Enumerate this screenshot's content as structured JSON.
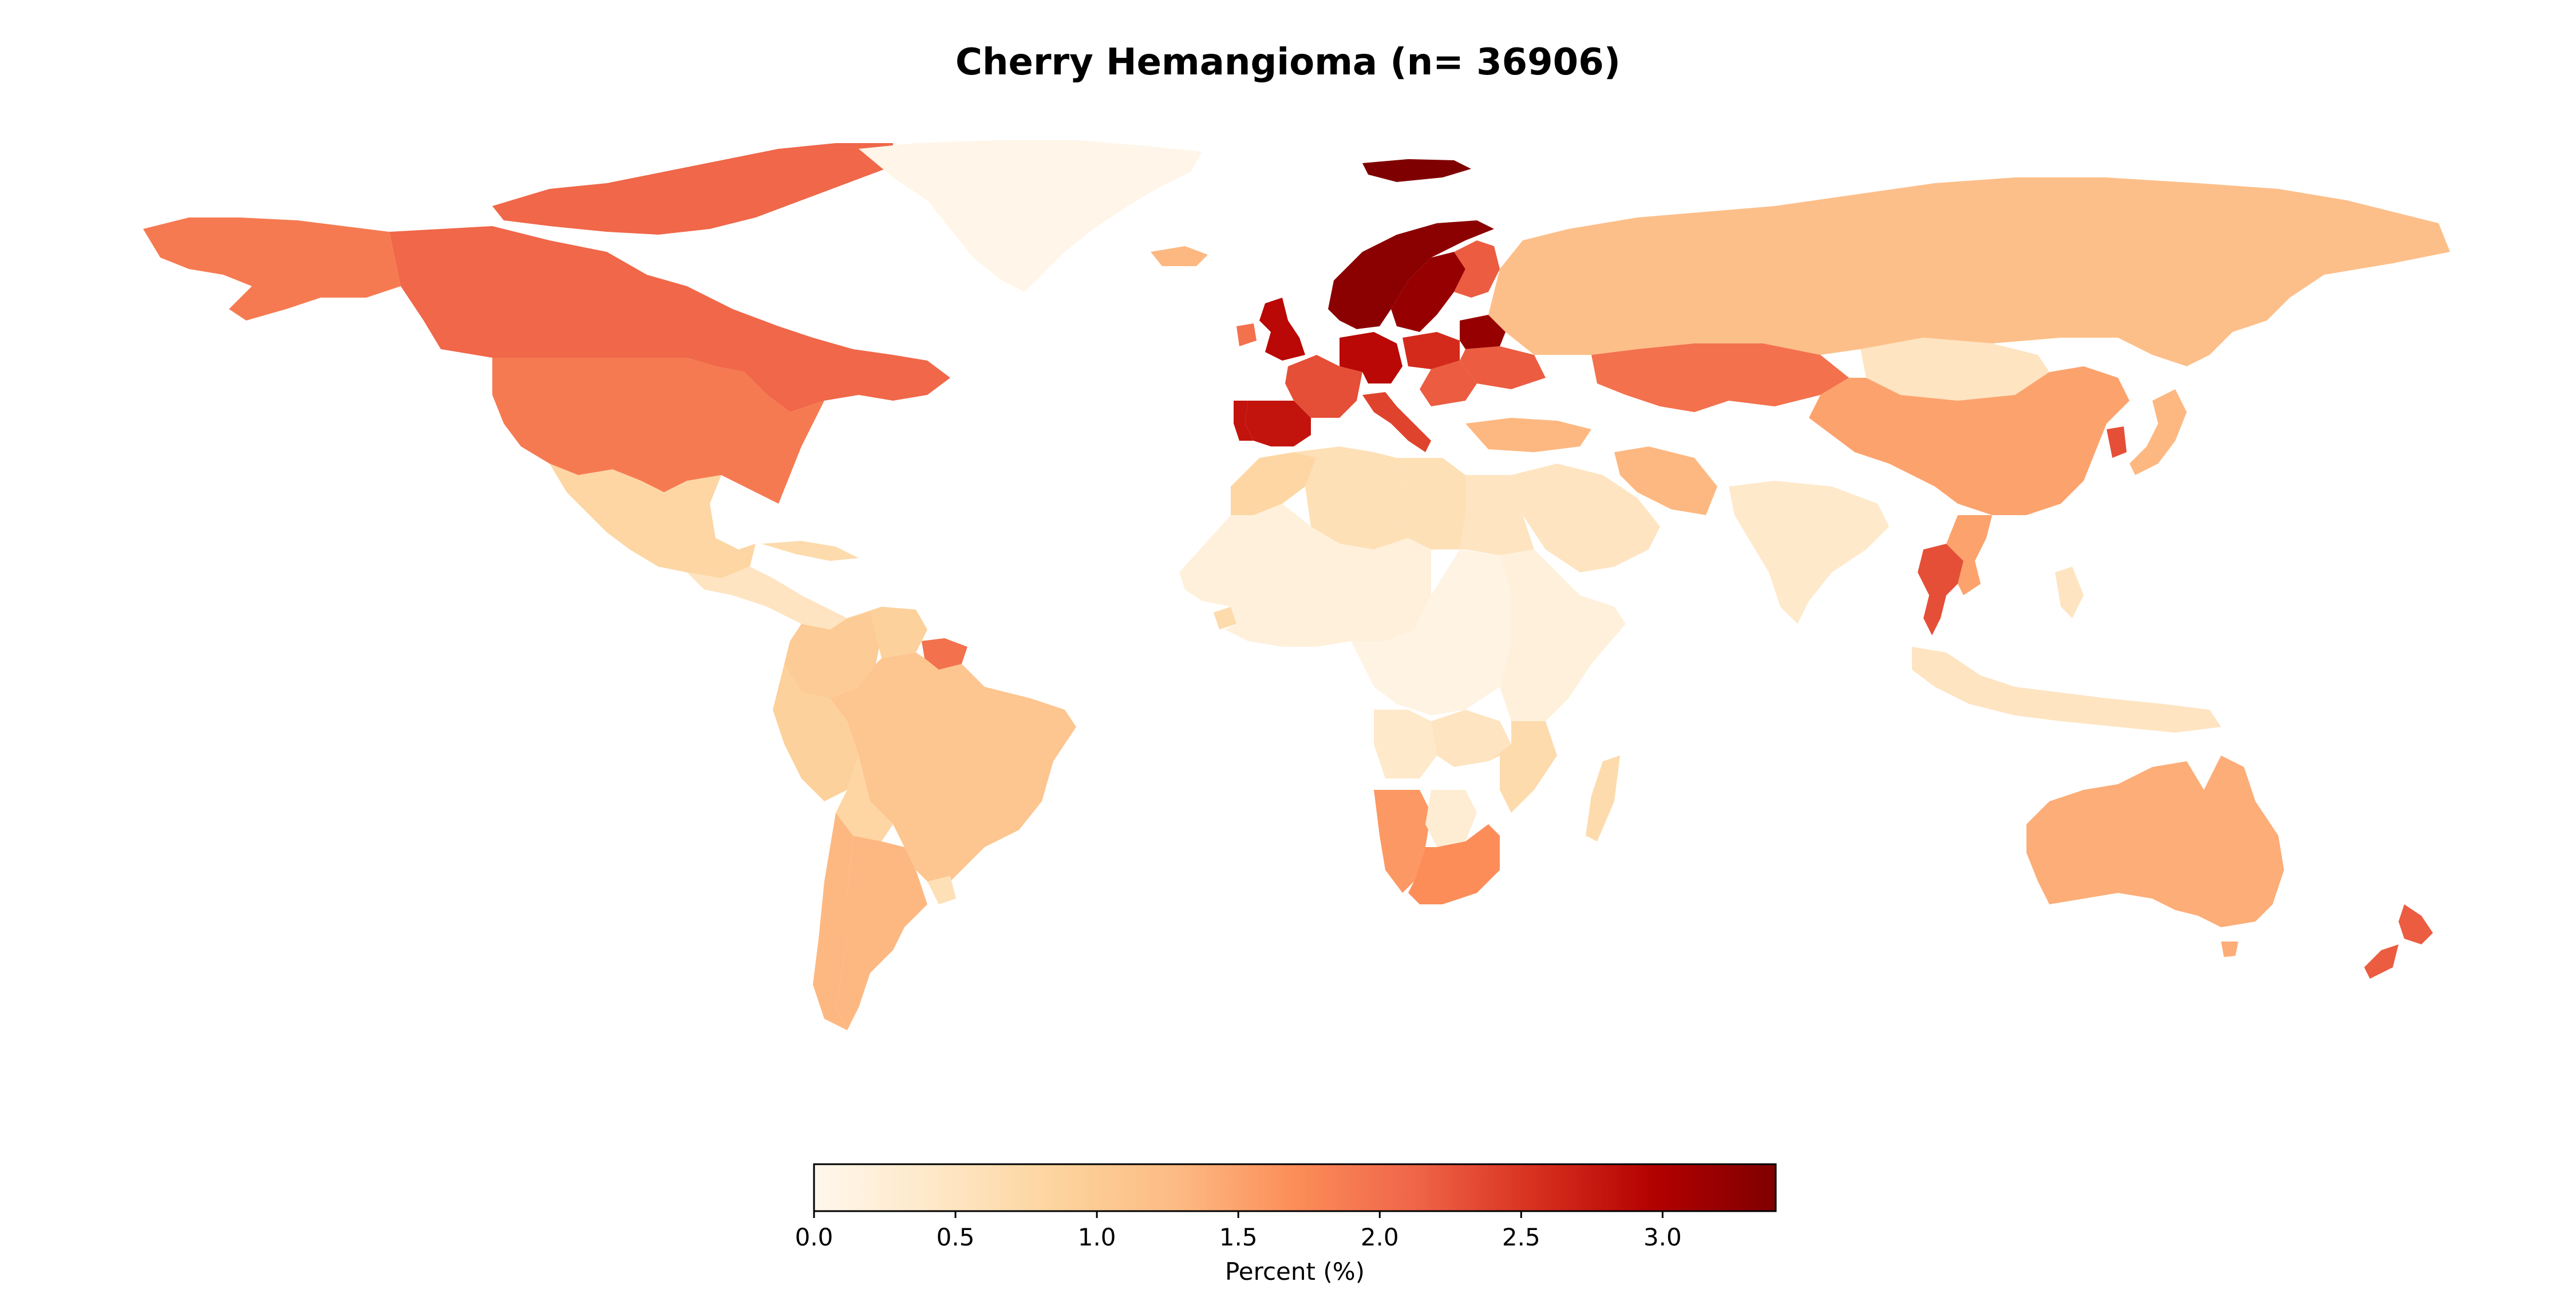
{
  "title": "Cherry Hemangioma (n= 36906)",
  "colorbar": {
    "label": "Percent (%)",
    "min": 0.0,
    "max": 3.4,
    "ticks": [
      "0.0",
      "0.5",
      "1.0",
      "1.5",
      "2.0",
      "2.5",
      "3.0"
    ],
    "colormap": "OrRd",
    "stops": [
      "#fff7ec",
      "#fee8c8",
      "#fdd49e",
      "#fdbb84",
      "#fc8d59",
      "#ef6548",
      "#d7301f",
      "#b30000",
      "#7f0000"
    ]
  },
  "chart_data": {
    "type": "choropleth",
    "value_unit": "Percent (%)",
    "regions": [
      {
        "name": "Canada",
        "value": 2.1
      },
      {
        "name": "United States",
        "value": 1.9
      },
      {
        "name": "Greenland",
        "value": 0.05
      },
      {
        "name": "Mexico",
        "value": 0.8
      },
      {
        "name": "Guatemala",
        "value": 0.5
      },
      {
        "name": "Cuba",
        "value": 0.7
      },
      {
        "name": "Colombia",
        "value": 1.0
      },
      {
        "name": "Venezuela",
        "value": 0.9
      },
      {
        "name": "Suriname",
        "value": 2.0
      },
      {
        "name": "Brazil",
        "value": 1.1
      },
      {
        "name": "Peru",
        "value": 0.9
      },
      {
        "name": "Bolivia",
        "value": 0.8
      },
      {
        "name": "Argentina",
        "value": 1.3
      },
      {
        "name": "Chile",
        "value": 1.3
      },
      {
        "name": "Uruguay",
        "value": 0.6
      },
      {
        "name": "Iceland",
        "value": 1.3
      },
      {
        "name": "Norway",
        "value": 3.3
      },
      {
        "name": "Sweden",
        "value": 3.2
      },
      {
        "name": "Finland",
        "value": 2.2
      },
      {
        "name": "Svalbard",
        "value": 3.4
      },
      {
        "name": "United Kingdom",
        "value": 2.9
      },
      {
        "name": "Ireland",
        "value": 2.0
      },
      {
        "name": "France",
        "value": 2.3
      },
      {
        "name": "Spain",
        "value": 2.8
      },
      {
        "name": "Portugal",
        "value": 2.8
      },
      {
        "name": "Germany",
        "value": 2.9
      },
      {
        "name": "Italy",
        "value": 2.4
      },
      {
        "name": "Poland",
        "value": 2.6
      },
      {
        "name": "Belarus",
        "value": 3.2
      },
      {
        "name": "Ukraine",
        "value": 2.2
      },
      {
        "name": "Romania",
        "value": 2.2
      },
      {
        "name": "Russia",
        "value": 1.2
      },
      {
        "name": "Kazakhstan",
        "value": 2.0
      },
      {
        "name": "Mongolia",
        "value": 0.5
      },
      {
        "name": "China",
        "value": 1.5
      },
      {
        "name": "Korea",
        "value": 2.3
      },
      {
        "name": "Japan",
        "value": 1.3
      },
      {
        "name": "Turkey",
        "value": 1.3
      },
      {
        "name": "Iran",
        "value": 1.3
      },
      {
        "name": "Saudi Arabia",
        "value": 0.5
      },
      {
        "name": "India",
        "value": 0.4
      },
      {
        "name": "Thailand",
        "value": 2.3
      },
      {
        "name": "Vietnam",
        "value": 1.5
      },
      {
        "name": "Indonesia",
        "value": 0.5
      },
      {
        "name": "Philippines",
        "value": 0.5
      },
      {
        "name": "Australia",
        "value": 1.4
      },
      {
        "name": "New Zealand",
        "value": 2.2
      },
      {
        "name": "Morocco",
        "value": 0.8
      },
      {
        "name": "Algeria",
        "value": 0.6
      },
      {
        "name": "Libya",
        "value": 0.6
      },
      {
        "name": "Egypt",
        "value": 0.5
      },
      {
        "name": "West Africa",
        "value": 0.2
      },
      {
        "name": "Senegal",
        "value": 0.7
      },
      {
        "name": "Central Africa",
        "value": 0.1
      },
      {
        "name": "East Africa",
        "value": 0.2
      },
      {
        "name": "Angola",
        "value": 0.4
      },
      {
        "name": "Zambia",
        "value": 0.5
      },
      {
        "name": "Namibia",
        "value": 1.6
      },
      {
        "name": "Botswana",
        "value": 0.3
      },
      {
        "name": "South Africa",
        "value": 1.7
      },
      {
        "name": "Mozambique",
        "value": 0.7
      },
      {
        "name": "Madagascar",
        "value": 0.7
      }
    ]
  }
}
